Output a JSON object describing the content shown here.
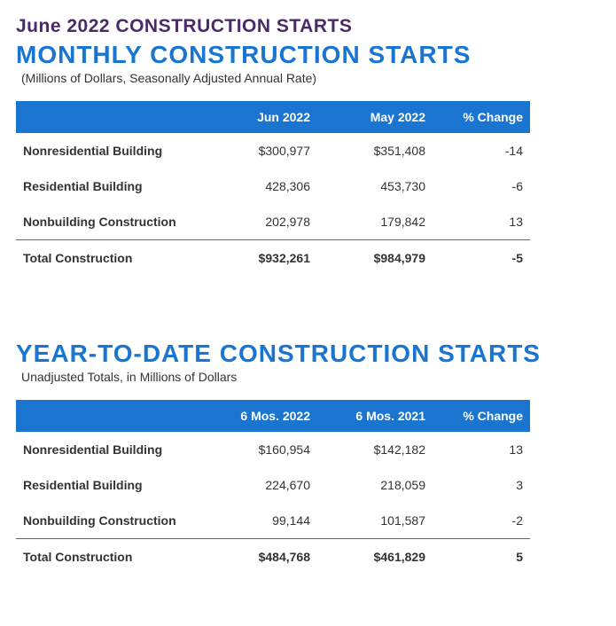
{
  "page_title": "June 2022 CONSTRUCTION STARTS",
  "colors": {
    "page_title_color": "#4b2a6b",
    "section_title_color": "#1a75d1",
    "header_bg": "#1a75d1",
    "header_text": "#ffffff",
    "body_text": "#333333",
    "rule_color": "#666666"
  },
  "fonts": {
    "page_title_size_pt": 16,
    "section_title_size_pt": 21,
    "subtitle_size_pt": 11,
    "table_text_size_pt": 11
  },
  "monthly": {
    "title": "MONTHLY CONSTRUCTION STARTS",
    "subtitle": "(Millions of Dollars, Seasonally Adjusted Annual Rate)",
    "columns": [
      "",
      "Jun 2022",
      "May 2022",
      "% Change"
    ],
    "rows": [
      {
        "label": "Nonresidential Building",
        "a": "$300,977",
        "b": "$351,408",
        "c": "-14"
      },
      {
        "label": "Residential Building",
        "a": "428,306",
        "b": "453,730",
        "c": "-6"
      },
      {
        "label": "Nonbuilding Construction",
        "a": "202,978",
        "b": "179,842",
        "c": "13"
      }
    ],
    "total": {
      "label": "Total Construction",
      "a": "$932,261",
      "b": "$984,979",
      "c": "-5"
    }
  },
  "ytd": {
    "title": "YEAR-TO-DATE CONSTRUCTION STARTS",
    "subtitle": "Unadjusted Totals, in Millions of Dollars",
    "columns": [
      "",
      "6 Mos. 2022",
      "6 Mos. 2021",
      "% Change"
    ],
    "rows": [
      {
        "label": "Nonresidential Building",
        "a": "$160,954",
        "b": "$142,182",
        "c": "13"
      },
      {
        "label": "Residential Building",
        "a": "224,670",
        "b": "218,059",
        "c": "3"
      },
      {
        "label": "Nonbuilding Construction",
        "a": "99,144",
        "b": "101,587",
        "c": "-2"
      }
    ],
    "total": {
      "label": "Total Construction",
      "a": "$484,768",
      "b": "$461,829",
      "c": "5"
    }
  }
}
